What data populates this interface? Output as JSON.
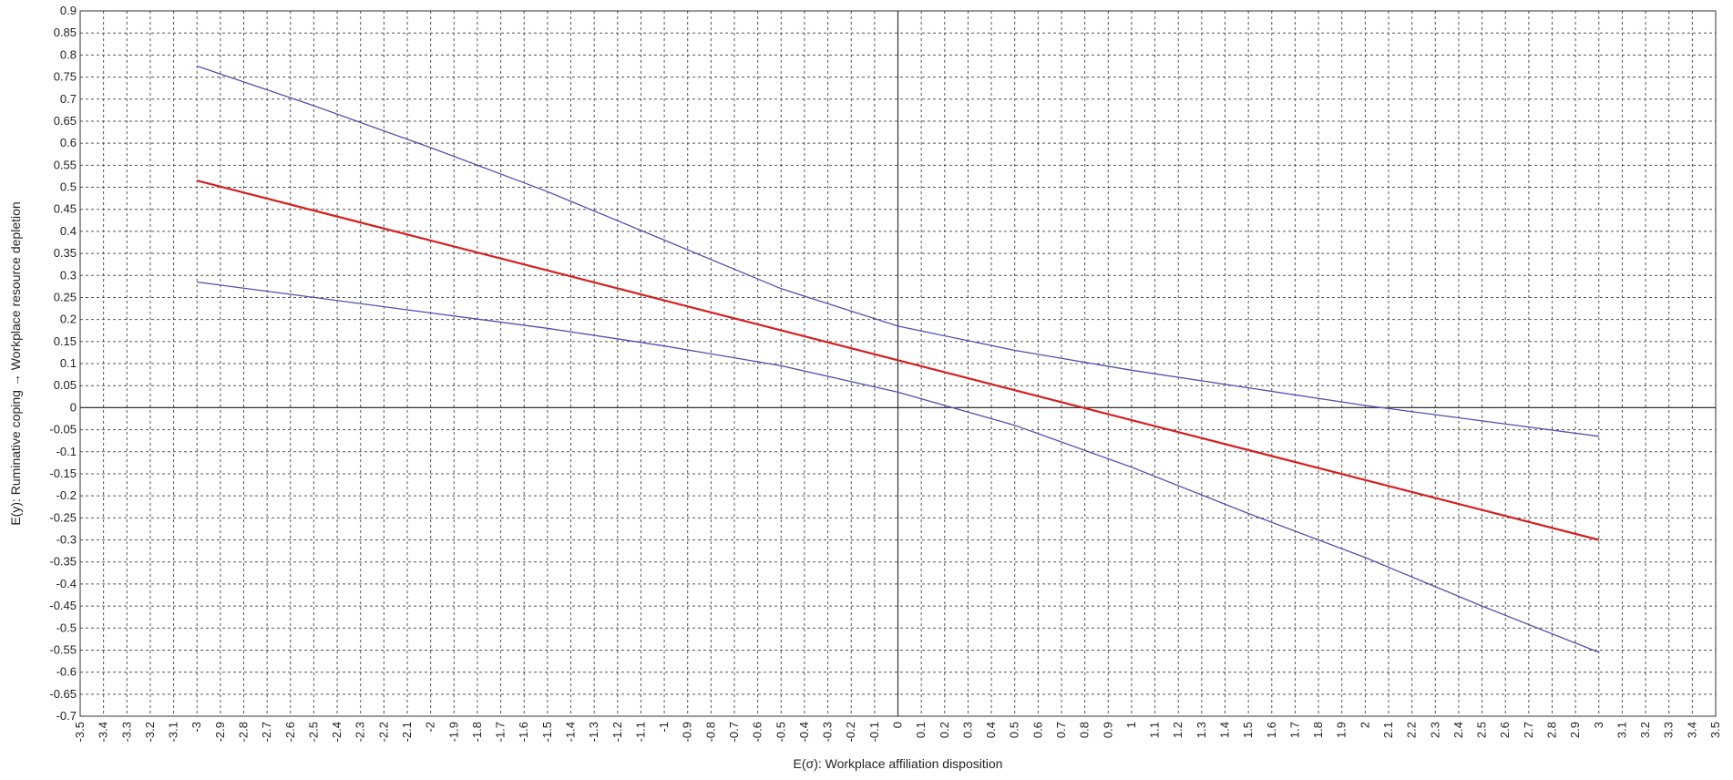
{
  "chart_data": {
    "type": "line",
    "title": "",
    "xlabel": "E(σ): Workplace affiliation disposition",
    "ylabel": "E(y): Ruminative coping → Workplace resource depletion",
    "xlim": [
      -3.5,
      3.5
    ],
    "ylim": [
      -0.7,
      0.9
    ],
    "x_tick_step": 0.1,
    "y_tick_step": 0.05,
    "grid": true,
    "x_tick_labels": [
      "-3.5",
      "-3.4",
      "-3.3",
      "-3.2",
      "-3.1",
      "-3",
      "-2.9",
      "-2.8",
      "-2.7",
      "-2.6",
      "-2.5",
      "-2.4",
      "-2.3",
      "-2.2",
      "-2.1",
      "-2",
      "-1.9",
      "-1.8",
      "-1.7",
      "-1.6",
      "-1.5",
      "-1.4",
      "-1.3",
      "-1.2",
      "-1.1",
      "-1",
      "-0.9",
      "-0.8",
      "-0.7",
      "-0.6",
      "-0.5",
      "-0.4",
      "-0.3",
      "-0.2",
      "-0.1",
      "0",
      "0.1",
      "0.2",
      "0.3",
      "0.4",
      "0.5",
      "0.6",
      "0.7",
      "0.8",
      "0.9",
      "1",
      "1.1",
      "1.2",
      "1.3",
      "1.4",
      "1.5",
      "1.6",
      "1.7",
      "1.8",
      "1.9",
      "2",
      "2.1",
      "2.2",
      "2.3",
      "2.4",
      "2.5",
      "2.6",
      "2.7",
      "2.8",
      "2.9",
      "3",
      "3.1",
      "3.2",
      "3.3",
      "3.4",
      "3.5"
    ],
    "y_tick_labels": [
      "0.9",
      "0.85",
      "0.8",
      "0.75",
      "0.7",
      "0.65",
      "0.6",
      "0.55",
      "0.5",
      "0.45",
      "0.4",
      "0.35",
      "0.3",
      "0.25",
      "0.2",
      "0.15",
      "0.1",
      "0.05",
      "0",
      "-0.05",
      "-0.1",
      "-0.15",
      "-0.2",
      "-0.25",
      "-0.3",
      "-0.35",
      "-0.4",
      "-0.45",
      "-0.5",
      "-0.55",
      "-0.6",
      "-0.65",
      "-0.7"
    ],
    "series": [
      {
        "role": "estimate",
        "color": "#d42020",
        "points": [
          [
            -3,
            0.515
          ],
          [
            3,
            -0.3
          ]
        ]
      },
      {
        "role": "upper_bound",
        "color": "#5050b0",
        "points": [
          [
            -3,
            0.775
          ],
          [
            -2.5,
            0.685
          ],
          [
            -2,
            0.59
          ],
          [
            -1.5,
            0.49
          ],
          [
            -1,
            0.38
          ],
          [
            -0.5,
            0.27
          ],
          [
            0,
            0.185
          ],
          [
            0.5,
            0.13
          ],
          [
            1,
            0.085
          ],
          [
            1.5,
            0.045
          ],
          [
            2,
            0.005
          ],
          [
            2.5,
            -0.03
          ],
          [
            3,
            -0.065
          ]
        ]
      },
      {
        "role": "lower_bound",
        "color": "#5050b0",
        "points": [
          [
            -3,
            0.285
          ],
          [
            -2.5,
            0.25
          ],
          [
            -2,
            0.215
          ],
          [
            -1.5,
            0.18
          ],
          [
            -1,
            0.14
          ],
          [
            -0.5,
            0.095
          ],
          [
            0,
            0.035
          ],
          [
            0.5,
            -0.04
          ],
          [
            1,
            -0.135
          ],
          [
            1.5,
            -0.24
          ],
          [
            2,
            -0.34
          ],
          [
            2.5,
            -0.45
          ],
          [
            3,
            -0.555
          ]
        ]
      }
    ]
  }
}
